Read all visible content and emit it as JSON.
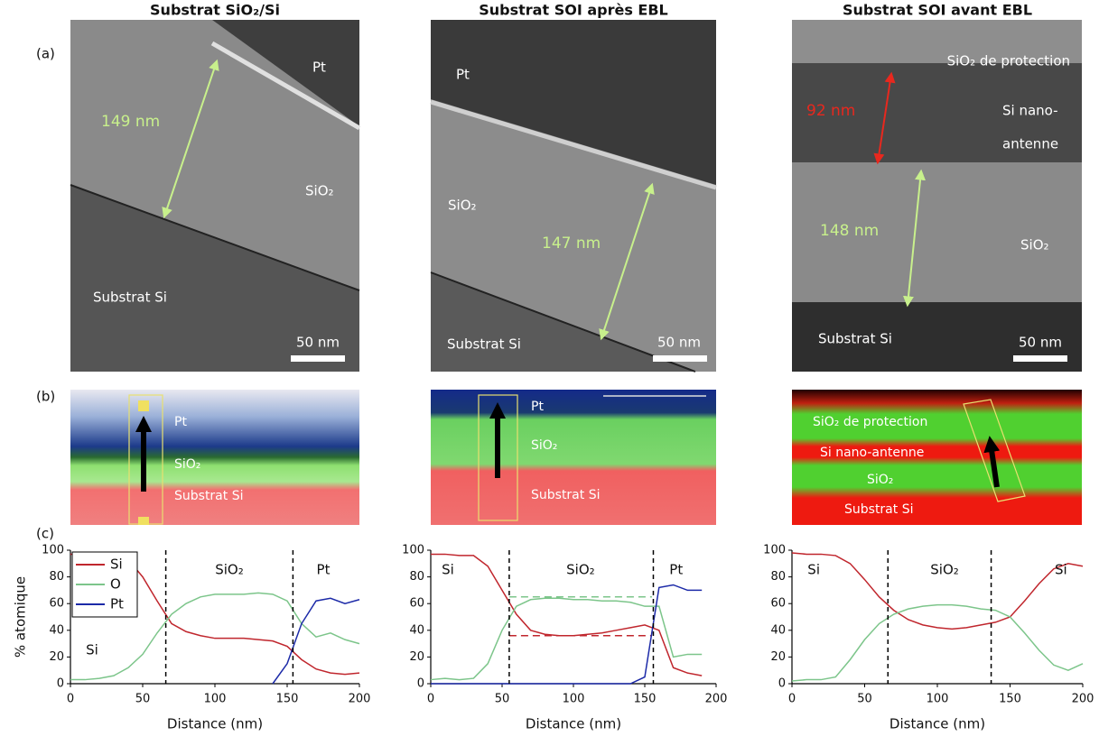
{
  "panel_labels": [
    "(a)",
    "(b)",
    "(c)"
  ],
  "columns": [
    {
      "title": "Substrat SiO₂/Si",
      "tem": [
        "Pt",
        "SiO₂",
        "Substrat Si",
        "149 nm",
        "50 nm"
      ],
      "map": [
        "Pt",
        "SiO₂",
        "Substrat Si"
      ]
    },
    {
      "title": "Substrat SOI après EBL",
      "tem": [
        "Pt",
        "SiO₂",
        "147 nm",
        "Substrat Si",
        "50 nm"
      ],
      "map": [
        "Pt",
        "SiO₂",
        "Substrat Si"
      ]
    },
    {
      "title": "Substrat SOI avant EBL",
      "tem": [
        "SiO₂ de protection",
        "92 nm",
        "Si nano-",
        "antenne",
        "148 nm",
        "SiO₂",
        "Substrat Si",
        "50 nm"
      ],
      "map": [
        "SiO₂ de protection",
        "Si nano-antenne",
        "SiO₂",
        "Substrat Si"
      ]
    }
  ],
  "chart_data": [
    {
      "type": "line",
      "ylabel": "% atomique",
      "xlabel": "Distance (nm)",
      "xlim": [
        0,
        200
      ],
      "xticks": [
        0,
        50,
        100,
        150,
        200
      ],
      "ylim": [
        0,
        100
      ],
      "yticks": [
        0,
        20,
        40,
        60,
        80,
        100
      ],
      "legend": "upper left",
      "x": [
        0,
        10,
        20,
        30,
        40,
        50,
        60,
        70,
        80,
        90,
        100,
        110,
        120,
        130,
        140,
        150,
        160,
        170,
        180,
        190,
        200
      ],
      "series": [
        {
          "name": "Si",
          "color": "#c0262d",
          "values": [
            97,
            97,
            97,
            96,
            93,
            80,
            62,
            45,
            39,
            36,
            34,
            34,
            34,
            33,
            32,
            28,
            18,
            11,
            8,
            7,
            8
          ]
        },
        {
          "name": "O",
          "color": "#7cc58a",
          "values": [
            3,
            3,
            4,
            6,
            12,
            22,
            38,
            52,
            60,
            65,
            67,
            67,
            67,
            68,
            67,
            62,
            45,
            35,
            38,
            33,
            30
          ]
        },
        {
          "name": "Pt",
          "color": "#1c2aa8",
          "values": [
            null,
            null,
            null,
            null,
            null,
            null,
            null,
            null,
            null,
            null,
            null,
            null,
            null,
            null,
            0,
            15,
            45,
            62,
            64,
            60,
            63
          ]
        }
      ],
      "vlines": [
        66,
        154
      ],
      "annotations": [
        "Si",
        "SiO₂",
        "Pt"
      ]
    },
    {
      "type": "line",
      "xlabel": "Distance (nm)",
      "xlim": [
        0,
        200
      ],
      "xticks": [
        0,
        50,
        100,
        150,
        200
      ],
      "ylim": [
        0,
        100
      ],
      "yticks": [
        0,
        20,
        40,
        60,
        80,
        100
      ],
      "x": [
        0,
        10,
        20,
        30,
        40,
        50,
        60,
        70,
        80,
        90,
        100,
        110,
        120,
        130,
        140,
        150,
        160,
        170,
        180,
        190
      ],
      "series": [
        {
          "color": "#c0262d",
          "values": [
            97,
            97,
            96,
            96,
            88,
            70,
            52,
            40,
            37,
            36,
            36,
            37,
            38,
            40,
            42,
            44,
            40,
            12,
            8,
            6
          ]
        },
        {
          "color": "#7cc58a",
          "values": [
            3,
            4,
            3,
            4,
            15,
            40,
            58,
            63,
            64,
            64,
            63,
            63,
            62,
            62,
            61,
            58,
            58,
            20,
            22,
            22
          ]
        },
        {
          "color": "#1c2aa8",
          "values": [
            0,
            0,
            0,
            0,
            0,
            0,
            0,
            0,
            0,
            0,
            0,
            0,
            0,
            0,
            0,
            5,
            72,
            74,
            70,
            70
          ]
        }
      ],
      "vlines": [
        55,
        156
      ],
      "hlines": [
        {
          "y": 65,
          "from": 55,
          "to": 155,
          "color": "#7cc58a"
        },
        {
          "y": 36,
          "from": 55,
          "to": 155,
          "color": "#c0262d"
        }
      ],
      "annotations": [
        "Si",
        "SiO₂",
        "Pt"
      ]
    },
    {
      "type": "line",
      "xlabel": "Distance (nm)",
      "xlim": [
        0,
        200
      ],
      "xticks": [
        0,
        50,
        100,
        150,
        200
      ],
      "ylim": [
        0,
        100
      ],
      "yticks": [
        0,
        20,
        40,
        60,
        80,
        100
      ],
      "x": [
        0,
        10,
        20,
        30,
        40,
        50,
        60,
        70,
        80,
        90,
        100,
        110,
        120,
        130,
        140,
        150,
        160,
        170,
        180,
        190,
        200
      ],
      "series": [
        {
          "color": "#c0262d",
          "values": [
            98,
            97,
            97,
            96,
            90,
            78,
            65,
            55,
            48,
            44,
            42,
            41,
            42,
            44,
            46,
            50,
            62,
            75,
            86,
            90,
            88
          ]
        },
        {
          "color": "#7cc58a",
          "values": [
            2,
            3,
            3,
            5,
            18,
            33,
            45,
            52,
            56,
            58,
            59,
            59,
            58,
            56,
            55,
            50,
            38,
            25,
            14,
            10,
            15
          ]
        }
      ],
      "vlines": [
        66,
        137
      ],
      "annotations": [
        "Si",
        "SiO₂",
        "Si"
      ]
    }
  ]
}
